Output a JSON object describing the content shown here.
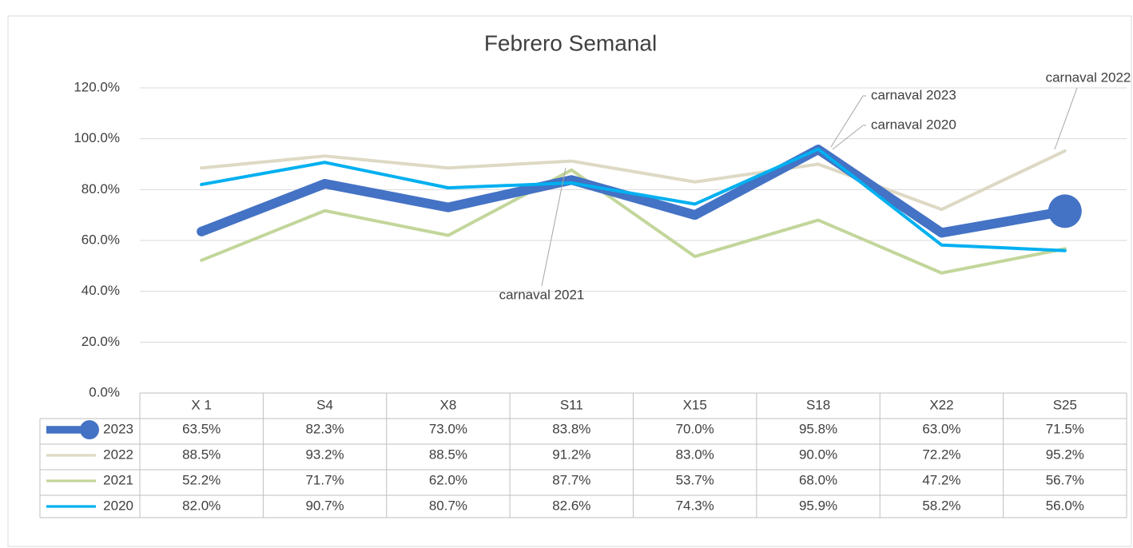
{
  "chart_data": {
    "type": "line",
    "title": "Febrero Semanal",
    "categories": [
      "X 1",
      "S4",
      "X8",
      "S11",
      "X15",
      "S18",
      "X22",
      "S25"
    ],
    "ylim": [
      0,
      120
    ],
    "yticks": [
      {
        "value": 0,
        "label": "0.0%"
      },
      {
        "value": 20,
        "label": "20.0%"
      },
      {
        "value": 40,
        "label": "40.0%"
      },
      {
        "value": 60,
        "label": "60.0%"
      },
      {
        "value": 80,
        "label": "80.0%"
      },
      {
        "value": 100,
        "label": "100.0%"
      },
      {
        "value": 120,
        "label": "120.0%"
      }
    ],
    "grid": true,
    "data_table": true,
    "series": [
      {
        "name": "2023",
        "color": "#4472c4",
        "marker": "last",
        "values": [
          63.5,
          82.3,
          73.0,
          83.8,
          70.0,
          95.8,
          63.0,
          71.5
        ],
        "value_labels": [
          "63.5%",
          "82.3%",
          "73.0%",
          "83.8%",
          "70.0%",
          "95.8%",
          "63.0%",
          "71.5%"
        ]
      },
      {
        "name": "2022",
        "color": "#ddd9c4",
        "values": [
          88.5,
          93.2,
          88.5,
          91.2,
          83.0,
          90.0,
          72.2,
          95.2
        ],
        "value_labels": [
          "88.5%",
          "93.2%",
          "88.5%",
          "91.2%",
          "83.0%",
          "90.0%",
          "72.2%",
          "95.2%"
        ]
      },
      {
        "name": "2021",
        "color": "#c3d69b",
        "values": [
          52.2,
          71.7,
          62.0,
          87.7,
          53.7,
          68.0,
          47.2,
          56.7
        ],
        "value_labels": [
          "52.2%",
          "71.7%",
          "62.0%",
          "87.7%",
          "53.7%",
          "68.0%",
          "47.2%",
          "56.7%"
        ]
      },
      {
        "name": "2020",
        "color": "#00b0f0",
        "values": [
          82.0,
          90.7,
          80.7,
          82.6,
          74.3,
          95.9,
          58.2,
          56.0
        ],
        "value_labels": [
          "82.0%",
          "90.7%",
          "80.7%",
          "82.6%",
          "74.3%",
          "95.9%",
          "58.2%",
          "56.0%"
        ]
      }
    ],
    "annotations": [
      {
        "text": "carnaval 2023"
      },
      {
        "text": "carnaval 2020"
      },
      {
        "text": "carnaval 2021"
      },
      {
        "text": "carnaval 2022"
      }
    ]
  }
}
